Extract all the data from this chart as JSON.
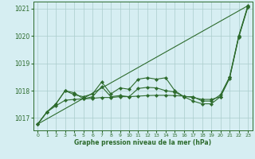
{
  "x": [
    0,
    1,
    2,
    3,
    4,
    5,
    6,
    7,
    8,
    9,
    10,
    11,
    12,
    13,
    14,
    15,
    16,
    17,
    18,
    19,
    20,
    21,
    22,
    23
  ],
  "y_jagged1": [
    1016.78,
    1017.22,
    1017.52,
    1018.0,
    1017.85,
    1017.78,
    1017.88,
    1018.32,
    1017.88,
    1018.1,
    1018.05,
    1018.42,
    1018.47,
    1018.42,
    1018.47,
    1018.0,
    1017.78,
    1017.78,
    1017.62,
    1017.62,
    1017.85,
    1018.5,
    1020.0,
    1021.1
  ],
  "y_jagged2": [
    1016.78,
    1017.22,
    1017.52,
    1018.0,
    1017.92,
    1017.7,
    1017.78,
    1018.15,
    1017.78,
    1017.82,
    1017.78,
    1018.08,
    1018.12,
    1018.1,
    1018.0,
    1017.95,
    1017.78,
    1017.62,
    1017.52,
    1017.52,
    1017.78,
    1018.48,
    1019.97,
    1021.08
  ],
  "y_flat": [
    1016.78,
    1017.22,
    1017.45,
    1017.65,
    1017.68,
    1017.7,
    1017.72,
    1017.75,
    1017.75,
    1017.78,
    1017.78,
    1017.8,
    1017.82,
    1017.83,
    1017.83,
    1017.82,
    1017.8,
    1017.75,
    1017.68,
    1017.68,
    1017.78,
    1018.45,
    1019.95,
    1021.05
  ],
  "y_trend_x": [
    0,
    23
  ],
  "y_trend_y": [
    1016.78,
    1021.1
  ],
  "bg_color": "#d6eef2",
  "grid_color": "#aacccc",
  "line_color": "#2d6b2d",
  "xlabel": "Graphe pression niveau de la mer (hPa)",
  "ylim": [
    1016.55,
    1021.25
  ],
  "xlim": [
    -0.5,
    23.5
  ],
  "yticks": [
    1017,
    1018,
    1019,
    1020,
    1021
  ],
  "xticks": [
    0,
    1,
    2,
    3,
    4,
    5,
    6,
    7,
    8,
    9,
    10,
    11,
    12,
    13,
    14,
    15,
    16,
    17,
    18,
    19,
    20,
    21,
    22,
    23
  ]
}
